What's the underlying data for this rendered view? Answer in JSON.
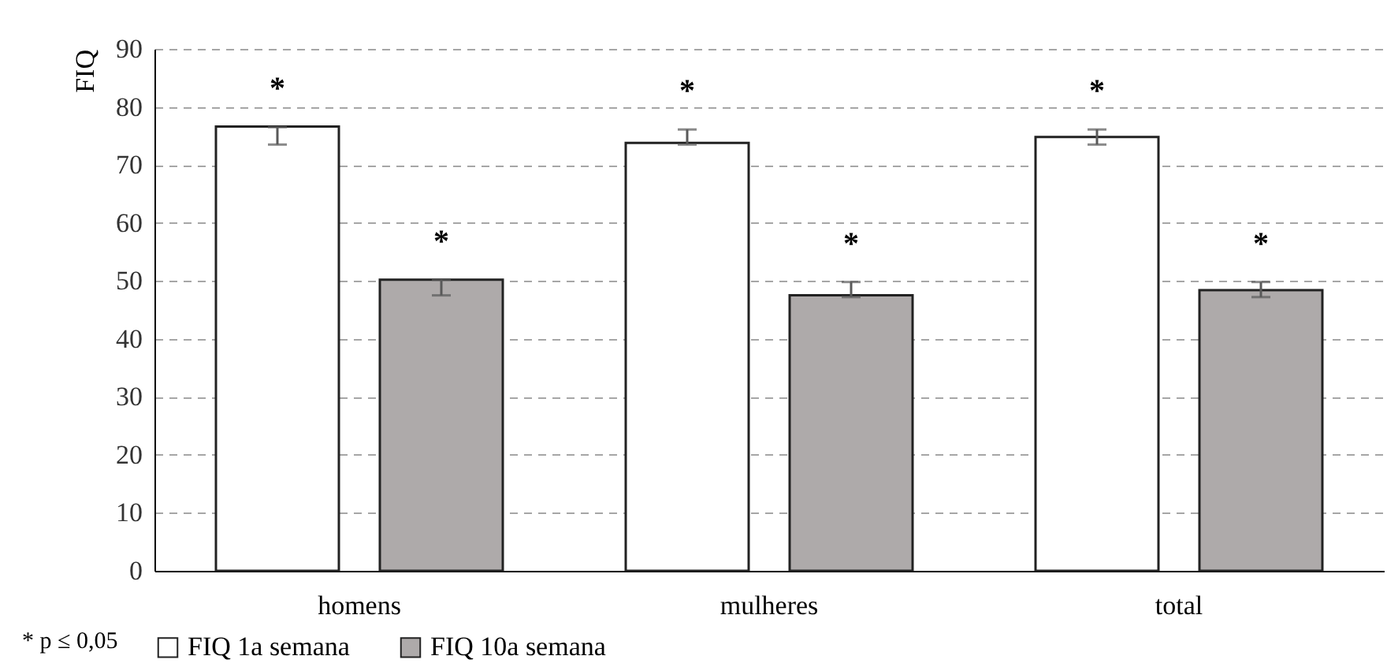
{
  "chart_data": {
    "type": "bar",
    "ylabel": "FIQ",
    "categories": [
      "homens",
      "mulheres",
      "total"
    ],
    "series": [
      {
        "name": "FIQ 1a semana",
        "color": "#ffffff",
        "values": [
          76.6,
          73.8,
          74.8
        ],
        "errors": [
          [
            73.5,
            76.5
          ],
          [
            73.5,
            76.1
          ],
          [
            73.5,
            76.1
          ]
        ]
      },
      {
        "name": "FIQ 10a semana",
        "color": "#aeaaaa",
        "values": [
          50.2,
          47.5,
          48.4
        ],
        "errors": [
          [
            47.5,
            50.2
          ],
          [
            47.2,
            49.8
          ],
          [
            47.2,
            49.8
          ]
        ]
      }
    ],
    "ylim": [
      0,
      90
    ],
    "yticks": [
      0,
      10,
      20,
      30,
      40,
      50,
      60,
      70,
      80,
      90
    ],
    "grid": "y",
    "legend": "bottom",
    "annotations": [
      "*",
      "*",
      "*",
      "*",
      "*",
      "*",
      "* p ≤ 0,05"
    ]
  }
}
